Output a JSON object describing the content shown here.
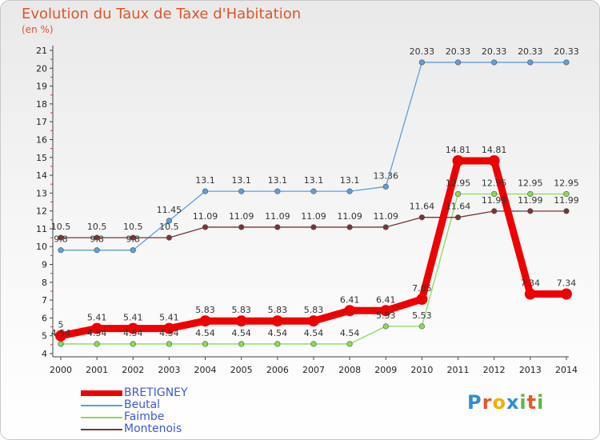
{
  "header": {
    "title": "Evolution du Taux de Taxe d'Habitation",
    "subtitle": "(en %)"
  },
  "logo": {
    "text": "Proxiti",
    "letters": [
      {
        "ch": "P",
        "color": "#2d8ed6"
      },
      {
        "ch": "r",
        "color": "#e6582a"
      },
      {
        "ch": "o",
        "color": "#f4b000"
      },
      {
        "ch": "x",
        "color": "#2d8ed6"
      },
      {
        "ch": "i",
        "color": "#5fb844"
      },
      {
        "ch": "t",
        "color": "#e6582a"
      },
      {
        "ch": "i",
        "color": "#5fb844"
      }
    ]
  },
  "chart_data": {
    "type": "line",
    "title": "Evolution du Taux de Taxe d'Habitation",
    "ylabel": "(en %)",
    "xlabel": "",
    "x": [
      "2000",
      "2001",
      "2002",
      "2003",
      "2004",
      "2005",
      "2006",
      "2007",
      "2008",
      "2009",
      "2010",
      "2011",
      "2012",
      "2013",
      "2014"
    ],
    "ylim": [
      4,
      21
    ],
    "yticks": [
      "4",
      "5",
      "6",
      "7",
      "8",
      "9",
      "10",
      "11",
      "12",
      "13",
      "14",
      "15",
      "16",
      "17",
      "18",
      "19",
      "20",
      "21"
    ],
    "grid": false,
    "legend_position": "bottom-left",
    "series": [
      {
        "name": "BRETIGNEY",
        "color": "#ee0000",
        "emphasis": true,
        "values": [
          5,
          5.41,
          5.41,
          5.41,
          5.83,
          5.83,
          5.83,
          5.83,
          6.41,
          6.41,
          7.05,
          14.81,
          14.81,
          7.34,
          7.34
        ],
        "labels": [
          "5",
          "5.41",
          "5.41",
          "5.41",
          "5.83",
          "5.83",
          "5.83",
          "5.83",
          "6.41",
          "6.41",
          "7.05",
          "14.81",
          "14.81",
          "7.34",
          "7.34"
        ]
      },
      {
        "name": "Beutal",
        "color": "#5aa0dc",
        "emphasis": false,
        "values": [
          9.8,
          9.8,
          9.8,
          11.45,
          13.1,
          13.1,
          13.1,
          13.1,
          13.1,
          13.36,
          20.33,
          20.33,
          20.33,
          20.33,
          20.33
        ],
        "labels": [
          "9.8",
          "9.8",
          "9.8",
          "11.45",
          "13.1",
          "13.1",
          "13.1",
          "13.1",
          "13.1",
          "13.36",
          "20.33",
          "20.33",
          "20.33",
          "20.33",
          "20.33"
        ]
      },
      {
        "name": "Faimbe",
        "color": "#88dd55",
        "emphasis": false,
        "values": [
          4.54,
          4.54,
          4.54,
          4.54,
          4.54,
          4.54,
          4.54,
          4.54,
          4.54,
          5.53,
          5.53,
          12.95,
          12.95,
          12.95,
          12.95
        ],
        "labels": [
          "4.54",
          "4.54",
          "4.54",
          "4.54",
          "4.54",
          "4.54",
          "4.54",
          "4.54",
          "4.54",
          "5.53",
          "5.53",
          "12.95",
          "12.95",
          "12.95",
          "12.95"
        ]
      },
      {
        "name": "Montenois",
        "color": "#7a3434",
        "emphasis": false,
        "values": [
          10.5,
          10.5,
          10.5,
          10.5,
          11.09,
          11.09,
          11.09,
          11.09,
          11.09,
          11.09,
          11.64,
          11.64,
          11.99,
          11.99,
          11.99
        ],
        "labels": [
          "10.5",
          "10.5",
          "10.5",
          "10.5",
          "11.09",
          "11.09",
          "11.09",
          "11.09",
          "11.09",
          "11.09",
          "11.64",
          "11.64",
          "11.99",
          "11.99",
          "11.99"
        ]
      }
    ]
  }
}
